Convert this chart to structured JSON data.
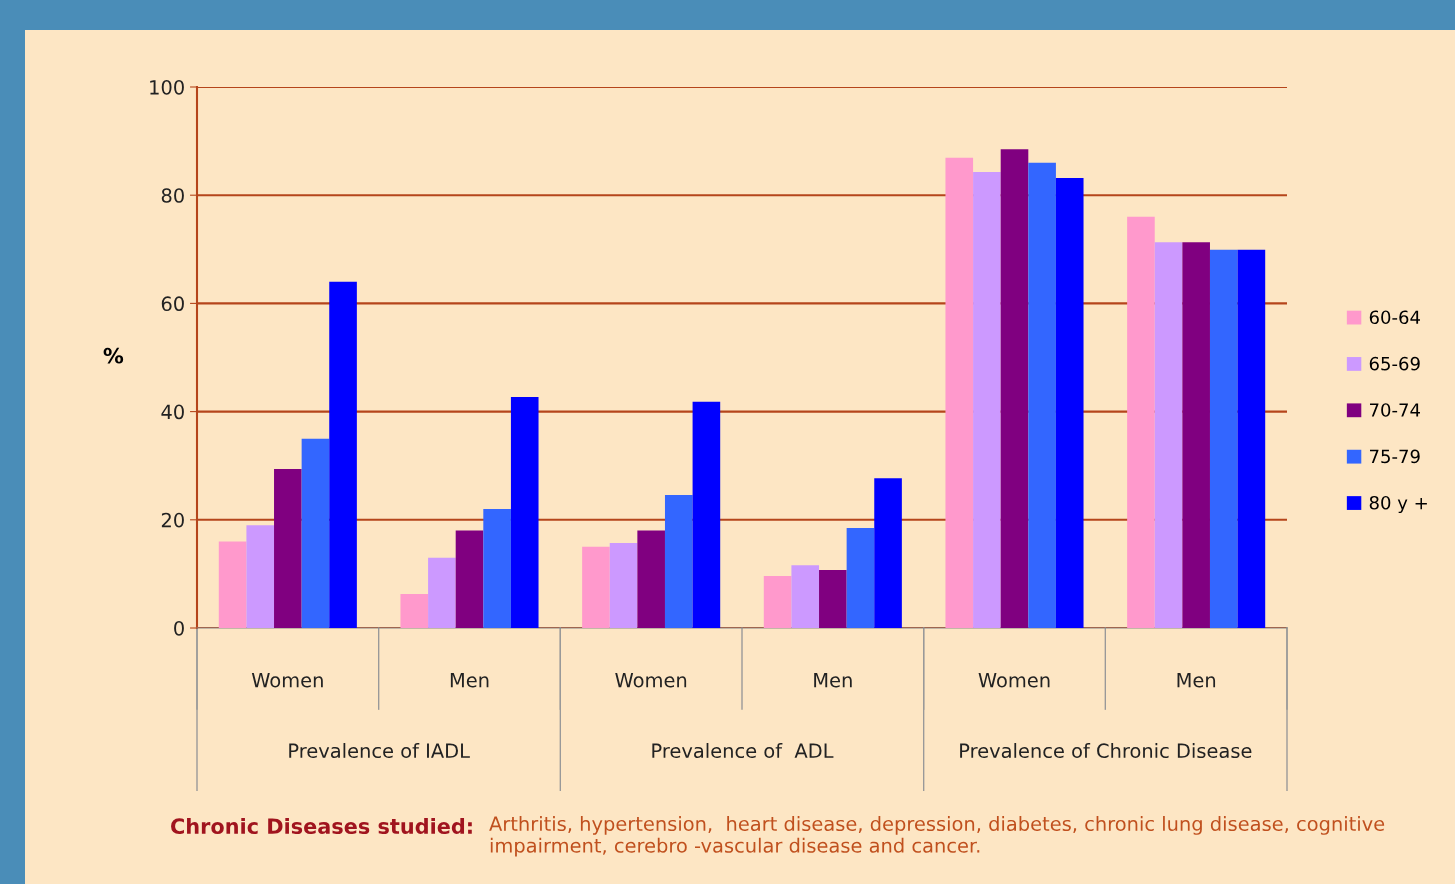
{
  "chart_data": {
    "type": "bar",
    "ylabel": "%",
    "categories": [
      "Women",
      "Men",
      "Women",
      "Men",
      "Women",
      "Men"
    ],
    "series": [
      {
        "name": "60-64",
        "color": "#ff99cc",
        "values": [
          16,
          6.3,
          15,
          9.6,
          86.9,
          76
        ]
      },
      {
        "name": "65-69",
        "color": "#cc99ff",
        "values": [
          19,
          13,
          15.7,
          11.6,
          84.3,
          71.3
        ]
      },
      {
        "name": "70-74",
        "color": "#800080",
        "values": [
          29.4,
          18,
          18,
          10.7,
          88.5,
          71.3
        ]
      },
      {
        "name": "75-79",
        "color": "#3366ff",
        "values": [
          35,
          22,
          24.6,
          18.5,
          86,
          69.9
        ]
      },
      {
        "name": "80 y +",
        "color": "#0000ff",
        "values": [
          64,
          42.7,
          41.8,
          27.7,
          83.2,
          69.9
        ]
      }
    ],
    "ylim": [
      0,
      100
    ],
    "yticks": [
      0,
      20,
      40,
      60,
      80,
      100
    ],
    "grid": "y",
    "legend": "right",
    "annotations": [
      "Prevalence of IADL",
      "Prevalence of  ADL",
      "Prevalence of Chronic Disease",
      "Chronic Diseases studied:",
      "Arthritis, hypertension,  heart disease, depression, diabetes, chronic lung disease, cognitive impairment, cerebro -vascular disease and cancer."
    ]
  }
}
